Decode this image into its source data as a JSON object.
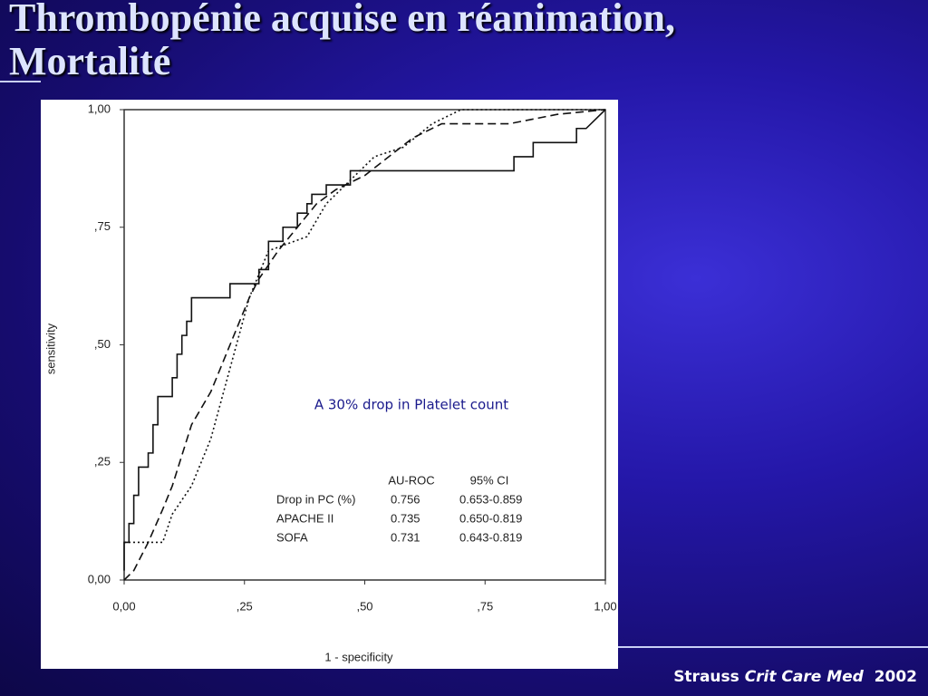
{
  "slide": {
    "title_lines": [
      "Thrombopénie acquise en réanimation,",
      "Mortalité"
    ],
    "citation": {
      "author": "Strauss",
      "journal": "Crit Care Med",
      "year": "2002"
    }
  },
  "chart_data": {
    "type": "line",
    "x_label": "1 - specificity",
    "y_label": "sensitivity",
    "annotation": "A 30% drop in Platelet count",
    "xlim": [
      0,
      1
    ],
    "ylim": [
      0,
      1
    ],
    "xticks": [
      {
        "value": 0,
        "label": "0,00"
      },
      {
        "value": 0.25,
        "label": ",25"
      },
      {
        "value": 0.5,
        "label": ",50"
      },
      {
        "value": 0.75,
        "label": ",75"
      },
      {
        "value": 1,
        "label": "1,00"
      }
    ],
    "yticks": [
      {
        "value": 0,
        "label": "0,00"
      },
      {
        "value": 0.25,
        "label": ",25"
      },
      {
        "value": 0.5,
        "label": ",50"
      },
      {
        "value": 0.75,
        "label": ",75"
      },
      {
        "value": 1,
        "label": "1,00"
      }
    ],
    "series": [
      {
        "name": "Drop in PC (%)",
        "color": "#111111",
        "dash": "solid",
        "x": [
          0,
          0,
          0.01,
          0.01,
          0.02,
          0.02,
          0.03,
          0.03,
          0.05,
          0.05,
          0.06,
          0.06,
          0.07,
          0.07,
          0.1,
          0.1,
          0.11,
          0.11,
          0.12,
          0.12,
          0.13,
          0.13,
          0.14,
          0.14,
          0.22,
          0.22,
          0.28,
          0.28,
          0.3,
          0.3,
          0.33,
          0.33,
          0.36,
          0.36,
          0.38,
          0.38,
          0.39,
          0.39,
          0.42,
          0.42,
          0.47,
          0.47,
          0.81,
          0.81,
          0.85,
          0.85,
          0.94,
          0.94,
          0.96,
          1
        ],
        "values": [
          0.02,
          0.08,
          0.08,
          0.12,
          0.12,
          0.18,
          0.18,
          0.24,
          0.24,
          0.27,
          0.27,
          0.33,
          0.33,
          0.39,
          0.39,
          0.43,
          0.43,
          0.48,
          0.48,
          0.52,
          0.52,
          0.55,
          0.55,
          0.6,
          0.6,
          0.63,
          0.63,
          0.66,
          0.66,
          0.72,
          0.72,
          0.75,
          0.75,
          0.78,
          0.78,
          0.8,
          0.8,
          0.82,
          0.82,
          0.84,
          0.84,
          0.87,
          0.87,
          0.9,
          0.9,
          0.93,
          0.93,
          0.96,
          0.96,
          1
        ]
      },
      {
        "name": "APACHE II",
        "color": "#111111",
        "dash": "dashed",
        "x": [
          0,
          0.02,
          0.05,
          0.08,
          0.1,
          0.14,
          0.18,
          0.22,
          0.26,
          0.28,
          0.32,
          0.36,
          0.4,
          0.44,
          0.5,
          0.6,
          0.66,
          0.8,
          0.9,
          1
        ],
        "values": [
          0,
          0.02,
          0.08,
          0.15,
          0.2,
          0.33,
          0.4,
          0.5,
          0.6,
          0.64,
          0.7,
          0.75,
          0.8,
          0.83,
          0.86,
          0.94,
          0.97,
          0.97,
          0.99,
          1
        ]
      },
      {
        "name": "SOFA",
        "color": "#111111",
        "dash": "dotted",
        "x": [
          0,
          0.08,
          0.1,
          0.14,
          0.18,
          0.22,
          0.26,
          0.3,
          0.38,
          0.42,
          0.5,
          0.52,
          0.58,
          0.64,
          0.7,
          1
        ],
        "values": [
          0.08,
          0.08,
          0.14,
          0.2,
          0.3,
          0.45,
          0.6,
          0.7,
          0.73,
          0.8,
          0.88,
          0.9,
          0.92,
          0.97,
          1,
          1
        ]
      }
    ],
    "stats_table": {
      "header": [
        "AU-ROC",
        "95% CI"
      ],
      "rows": [
        {
          "auc": 0.756,
          "ci": "0.653-0.859"
        },
        {
          "auc": 0.735,
          "ci": "0.650-0.819"
        },
        {
          "auc": 0.731,
          "ci": "0.643-0.819"
        }
      ]
    }
  }
}
